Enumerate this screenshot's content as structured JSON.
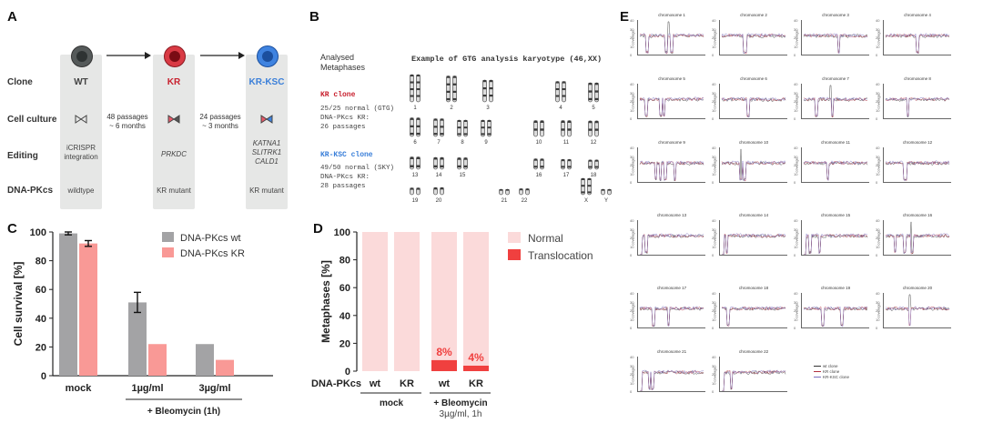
{
  "panel_letters": {
    "a": "A",
    "b": "B",
    "c": "C",
    "d": "D",
    "e": "E"
  },
  "panelA": {
    "row_labels": [
      "Clone",
      "Cell culture",
      "Editing",
      "DNA-PKcs"
    ],
    "clones": [
      {
        "name": "WT",
        "name_color": "#444444",
        "cell_color": "#555a5a",
        "nucleus_color": "#2e3333",
        "editing": "iCRISPR integration",
        "editing_italic": false,
        "dnapkcs": "wildtype"
      },
      {
        "name": "KR",
        "name_color": "#c8202e",
        "cell_color": "#d93a44",
        "nucleus_color": "#7a0c14",
        "editing": "PRKDC",
        "editing_italic": true,
        "dnapkcs": "KR mutant"
      },
      {
        "name": "KR-KSC",
        "name_color": "#3a7fd9",
        "cell_color": "#3f83e0",
        "nucleus_color": "#1b4f9e",
        "editing": "KATNA1 SLITRK1 CALD1",
        "editing_italic": true,
        "dnapkcs": "KR mutant"
      }
    ],
    "arrow1_note": [
      "48 passages",
      "~ 6 months"
    ],
    "arrow2_note": [
      "24 passages",
      "~ 3 months"
    ]
  },
  "panelB": {
    "analysed_title": "Analysed Metaphases",
    "karyotype_title": "Example of GTG analysis karyotype (46,XX)",
    "kr_clone": {
      "label": "KR clone",
      "lines": [
        "25/25 normal (GTG)",
        "DNA-PKcs KR:",
        "26 passages"
      ]
    },
    "krksc_clone": {
      "label": "KR-KSC clone",
      "lines": [
        "49/50 normal (SKY)",
        "DNA-PKcs KR:",
        "28 passages"
      ]
    },
    "chromosome_labels": [
      "1",
      "2",
      "3",
      "4",
      "5",
      "6",
      "7",
      "8",
      "9",
      "10",
      "11",
      "12",
      "13",
      "14",
      "15",
      "16",
      "17",
      "18",
      "19",
      "20",
      "21",
      "22",
      "X",
      "Y"
    ]
  },
  "chart_data": [
    {
      "panel": "C",
      "type": "bar",
      "ylabel": "Cell survival [%]",
      "ylim": [
        0,
        100
      ],
      "yticks": [
        0,
        20,
        40,
        60,
        80,
        100
      ],
      "categories": [
        "mock",
        "1µg/ml",
        "3µg/ml"
      ],
      "group_label": "+ Bleomycin (1h)",
      "series": [
        {
          "name": "DNA-PKcs wt",
          "color": "#a3a3a5",
          "values": [
            99,
            51,
            22
          ],
          "errors": [
            1,
            7,
            0.5
          ]
        },
        {
          "name": "DNA-PKcs KR",
          "color": "#f99996",
          "values": [
            92,
            22,
            11
          ],
          "errors": [
            2,
            0.5,
            0.5
          ]
        }
      ]
    },
    {
      "panel": "D",
      "type": "bar",
      "stacked": true,
      "ylabel": "Metaphases [%]",
      "ylim": [
        0,
        100
      ],
      "yticks": [
        0,
        20,
        40,
        60,
        80,
        100
      ],
      "row_label": "DNA-PKcs",
      "categories": [
        "wt",
        "KR",
        "wt",
        "KR"
      ],
      "groups": [
        {
          "label": "mock",
          "lines": [
            "mock"
          ]
        },
        {
          "label": "+ Bleomycin 3µg/ml, 1h",
          "lines": [
            "+ Bleomycin",
            "3µg/ml, 1h"
          ]
        }
      ],
      "series": [
        {
          "name": "Normal",
          "color": "#fbdada",
          "values": [
            100,
            100,
            92,
            96
          ]
        },
        {
          "name": "Translocation",
          "color": "#f0403f",
          "values": [
            0,
            0,
            8,
            4
          ]
        }
      ],
      "annotations": [
        "",
        "",
        "8%",
        "4%"
      ]
    },
    {
      "panel": "E",
      "type": "line",
      "ylabel": "coverage",
      "ylim": [
        0,
        40
      ],
      "yticks": [
        0,
        10,
        20,
        30,
        40
      ],
      "chromosomes": [
        "chromosome 1",
        "chromosome 2",
        "chromosome 3",
        "chromosome 4",
        "chromosome 5",
        "chromosome 6",
        "chromosome 7",
        "chromosome 8",
        "chromosome 9",
        "chromosome 10",
        "chromosome 11",
        "chromosome 12",
        "chromosome 13",
        "chromosome 14",
        "chromosome 15",
        "chromosome 16",
        "chromosome 17",
        "chromosome 18",
        "chromosome 19",
        "chromosome 20",
        "chromosome 21",
        "chromosome 22"
      ],
      "baseline_coverage": 22,
      "legend": [
        "wt clone",
        "KR clone",
        "KR-KSC clone"
      ],
      "series_colors": [
        "#333333",
        "#b03040",
        "#7a70c0"
      ]
    }
  ],
  "colors": {
    "panel_bg": "#e6e7e6",
    "axis": "#222222"
  }
}
